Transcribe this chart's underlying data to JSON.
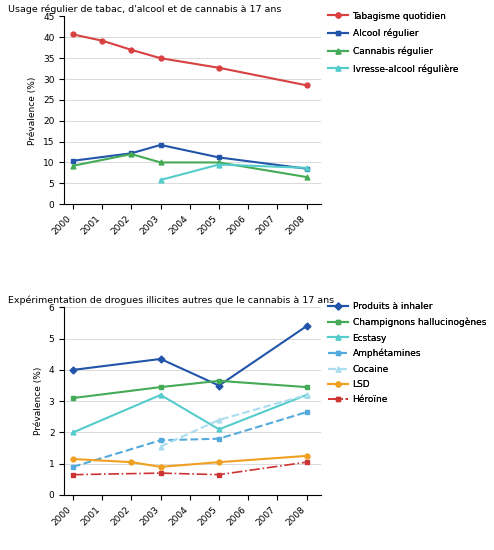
{
  "top": {
    "title": "Usage régulier de tabac, d'alcool et de cannabis à 17 ans",
    "ylabel": "Prévalence (%)",
    "ylim": [
      0,
      45
    ],
    "yticks": [
      0,
      5,
      10,
      15,
      20,
      25,
      30,
      35,
      40,
      45
    ],
    "series": {
      "Tabagisme quotidien": {
        "years": [
          2000,
          2001,
          2002,
          2003,
          2005,
          2008
        ],
        "values": [
          40.7,
          39.2,
          37.0,
          35.0,
          32.7,
          28.5
        ],
        "color": "#d94040",
        "marker": "o",
        "linestyle": "-",
        "lw": 1.5
      },
      "Alcool régulier": {
        "years": [
          2000,
          2002,
          2003,
          2005,
          2008
        ],
        "values": [
          10.4,
          12.2,
          14.2,
          11.2,
          8.5
        ],
        "color": "#2255aa",
        "marker": "s",
        "linestyle": "-",
        "lw": 1.5
      },
      "Cannabis régulier": {
        "years": [
          2000,
          2002,
          2003,
          2005,
          2008
        ],
        "values": [
          9.2,
          12.0,
          10.0,
          10.0,
          6.5
        ],
        "color": "#44aa55",
        "marker": "^",
        "linestyle": "-",
        "lw": 1.5
      },
      "Ivresse-alcool régulière": {
        "years": [
          2003,
          2005,
          2008
        ],
        "values": [
          5.8,
          9.5,
          8.7
        ],
        "color": "#55cccc",
        "marker": "^",
        "linestyle": "-",
        "lw": 1.5
      }
    },
    "legend": [
      "Tabagisme quotidien",
      "Alcool régulier",
      "Cannabis régulier",
      "Ivresse-alcool régulière"
    ]
  },
  "bottom": {
    "title": "Expérimentation de drogues illicites autres que le cannabis à 17 ans",
    "ylabel": "Prévalence (%)",
    "ylim": [
      0,
      6
    ],
    "yticks": [
      0,
      1,
      2,
      3,
      4,
      5,
      6
    ],
    "series": {
      "Produits à inhaler": {
        "years": [
          2000,
          2003,
          2005,
          2008
        ],
        "values": [
          4.0,
          4.35,
          3.5,
          5.4
        ],
        "color": "#2255aa",
        "marker": "D",
        "linestyle": "-",
        "lw": 1.5
      },
      "Champignons hallucinogènes": {
        "years": [
          2000,
          2003,
          2005,
          2008
        ],
        "values": [
          3.1,
          3.45,
          3.65,
          3.45
        ],
        "color": "#44aa55",
        "marker": "s",
        "linestyle": "-",
        "lw": 1.5
      },
      "Ecstasy": {
        "years": [
          2000,
          2003,
          2005,
          2008
        ],
        "values": [
          2.0,
          3.2,
          2.1,
          3.2
        ],
        "color": "#55cccc",
        "marker": "^",
        "linestyle": "-",
        "lw": 1.5
      },
      "Amphétamines": {
        "years": [
          2000,
          2003,
          2005,
          2008
        ],
        "values": [
          0.9,
          1.75,
          1.8,
          2.65
        ],
        "color": "#55aadd",
        "marker": "s",
        "linestyle": "--",
        "lw": 1.5
      },
      "Cocaine": {
        "years": [
          2003,
          2005,
          2008
        ],
        "values": [
          1.55,
          2.4,
          3.2
        ],
        "color": "#aaddee",
        "marker": "^",
        "linestyle": "--",
        "lw": 1.5
      },
      "LSD": {
        "years": [
          2000,
          2002,
          2003,
          2005,
          2008
        ],
        "values": [
          1.15,
          1.05,
          0.9,
          1.05,
          1.25
        ],
        "color": "#f0a020",
        "marker": "o",
        "linestyle": "-",
        "lw": 1.5
      },
      "Héroïne": {
        "years": [
          2000,
          2003,
          2005,
          2008
        ],
        "values": [
          0.65,
          0.7,
          0.65,
          1.05
        ],
        "color": "#cc3333",
        "marker": "s",
        "linestyle": "-.",
        "lw": 1.2
      }
    },
    "legend": [
      "Produits à inhaler",
      "Champignons hallucinogènes",
      "Ecstasy",
      "Amphétamines",
      "Cocaine",
      "LSD",
      "Héroïne"
    ]
  },
  "years": [
    2000,
    2001,
    2002,
    2003,
    2004,
    2005,
    2006,
    2007,
    2008
  ],
  "background_color": "#ffffff",
  "grid_color": "#cccccc"
}
